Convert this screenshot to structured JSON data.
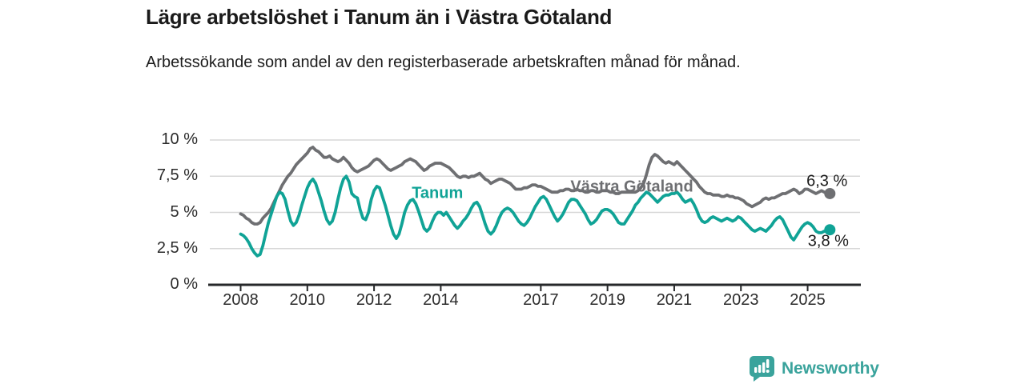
{
  "header": {
    "title": "Lägre arbetslöshet i Tanum än i Västra Götaland",
    "subtitle": "Arbetssökande som andel av den registerbaserade arbetskraften månad för månad."
  },
  "chart_data": {
    "type": "line",
    "x_start": "2008-01",
    "x_step_months": 1,
    "x_end": "2025-09",
    "ylim": [
      0,
      10
    ],
    "grid": "horizontal",
    "grid_color": "#d7d7d7",
    "axis_color": "#26282a",
    "y_ticks": [
      {
        "value": 0,
        "label": "0 %"
      },
      {
        "value": 2.5,
        "label": "2,5 %"
      },
      {
        "value": 5,
        "label": "5 %"
      },
      {
        "value": 7.5,
        "label": "7,5 %"
      },
      {
        "value": 10,
        "label": "10 %"
      }
    ],
    "x_ticks": [
      {
        "value": 2008,
        "label": "2008"
      },
      {
        "value": 2010,
        "label": "2010"
      },
      {
        "value": 2012,
        "label": "2012"
      },
      {
        "value": 2014,
        "label": "2014"
      },
      {
        "value": 2017,
        "label": "2017"
      },
      {
        "value": 2019,
        "label": "2019"
      },
      {
        "value": 2021,
        "label": "2021"
      },
      {
        "value": 2023,
        "label": "2023"
      },
      {
        "value": 2025,
        "label": "2025"
      }
    ],
    "series": [
      {
        "name": "Västra Götaland",
        "color": "#6E6F72",
        "end_label": "6,3 %",
        "end_value": 6.3,
        "values": [
          4.9,
          4.8,
          4.6,
          4.5,
          4.3,
          4.2,
          4.2,
          4.3,
          4.6,
          4.8,
          5.0,
          5.3,
          5.7,
          6.1,
          6.5,
          6.9,
          7.2,
          7.5,
          7.7,
          8.0,
          8.3,
          8.5,
          8.7,
          8.9,
          9.1,
          9.4,
          9.5,
          9.3,
          9.2,
          9.0,
          8.8,
          8.8,
          8.9,
          8.7,
          8.6,
          8.5,
          8.6,
          8.8,
          8.6,
          8.4,
          8.1,
          7.9,
          7.8,
          7.9,
          8.0,
          8.1,
          8.2,
          8.4,
          8.6,
          8.7,
          8.6,
          8.4,
          8.2,
          8.0,
          7.9,
          8.0,
          8.1,
          8.2,
          8.3,
          8.5,
          8.6,
          8.7,
          8.6,
          8.5,
          8.3,
          8.1,
          7.9,
          8.0,
          8.2,
          8.3,
          8.4,
          8.4,
          8.4,
          8.3,
          8.2,
          8.1,
          7.9,
          7.7,
          7.5,
          7.4,
          7.5,
          7.5,
          7.4,
          7.5,
          7.5,
          7.6,
          7.7,
          7.5,
          7.3,
          7.2,
          7.0,
          7.1,
          7.2,
          7.3,
          7.3,
          7.2,
          7.1,
          7.0,
          6.8,
          6.6,
          6.6,
          6.6,
          6.7,
          6.7,
          6.8,
          6.9,
          6.9,
          6.8,
          6.8,
          6.7,
          6.6,
          6.5,
          6.4,
          6.4,
          6.4,
          6.5,
          6.5,
          6.6,
          6.6,
          6.5,
          6.5,
          6.6,
          6.5,
          6.5,
          6.4,
          6.4,
          6.5,
          6.5,
          6.4,
          6.4,
          6.5,
          6.5,
          6.5,
          6.4,
          6.4,
          6.3,
          6.3,
          6.4,
          6.4,
          6.4,
          6.4,
          6.4,
          6.4,
          6.5,
          6.7,
          7.0,
          7.6,
          8.3,
          8.8,
          9.0,
          8.9,
          8.7,
          8.5,
          8.4,
          8.5,
          8.4,
          8.3,
          8.5,
          8.3,
          8.1,
          7.9,
          7.7,
          7.5,
          7.3,
          7.1,
          6.8,
          6.6,
          6.4,
          6.3,
          6.3,
          6.2,
          6.2,
          6.2,
          6.1,
          6.1,
          6.2,
          6.1,
          6.1,
          6.0,
          6.0,
          5.9,
          5.8,
          5.6,
          5.5,
          5.4,
          5.5,
          5.6,
          5.7,
          5.9,
          6.0,
          5.9,
          6.0,
          6.0,
          6.1,
          6.2,
          6.3,
          6.3,
          6.4,
          6.5,
          6.6,
          6.5,
          6.3,
          6.4,
          6.6,
          6.6,
          6.5,
          6.4,
          6.3,
          6.4,
          6.5,
          6.4,
          6.3,
          6.3
        ]
      },
      {
        "name": "Tanum",
        "color": "#10A396",
        "end_label": "3,8 %",
        "end_value": 3.8,
        "values": [
          3.5,
          3.4,
          3.2,
          2.9,
          2.5,
          2.2,
          2.0,
          2.1,
          2.7,
          3.5,
          4.3,
          4.9,
          5.5,
          6.1,
          6.4,
          6.3,
          5.9,
          5.1,
          4.4,
          4.1,
          4.3,
          4.8,
          5.5,
          6.1,
          6.7,
          7.1,
          7.3,
          7.0,
          6.4,
          5.8,
          5.1,
          4.5,
          4.2,
          4.4,
          5.0,
          5.9,
          6.7,
          7.3,
          7.5,
          7.1,
          6.3,
          6.1,
          6.0,
          5.2,
          4.6,
          4.5,
          5.0,
          5.9,
          6.5,
          6.8,
          6.7,
          6.1,
          5.5,
          4.8,
          4.1,
          3.5,
          3.2,
          3.5,
          4.2,
          5.0,
          5.5,
          5.8,
          5.9,
          5.6,
          5.1,
          4.5,
          3.9,
          3.7,
          3.9,
          4.4,
          4.8,
          5.0,
          5.0,
          4.8,
          5.0,
          4.7,
          4.4,
          4.1,
          3.9,
          4.1,
          4.4,
          4.6,
          4.9,
          5.3,
          5.6,
          5.7,
          5.4,
          4.8,
          4.2,
          3.7,
          3.5,
          3.7,
          4.1,
          4.6,
          5.0,
          5.2,
          5.3,
          5.2,
          5.0,
          4.7,
          4.4,
          4.2,
          4.1,
          4.3,
          4.6,
          5.0,
          5.4,
          5.7,
          6.0,
          6.1,
          5.9,
          5.5,
          5.1,
          4.7,
          4.4,
          4.6,
          4.9,
          5.3,
          5.7,
          5.9,
          5.9,
          5.8,
          5.5,
          5.2,
          4.9,
          4.5,
          4.2,
          4.3,
          4.5,
          4.8,
          5.1,
          5.2,
          5.2,
          5.1,
          4.9,
          4.6,
          4.3,
          4.2,
          4.2,
          4.5,
          4.8,
          5.1,
          5.5,
          5.7,
          6.0,
          6.2,
          6.4,
          6.3,
          6.1,
          5.9,
          5.7,
          5.9,
          6.1,
          6.2,
          6.2,
          6.3,
          6.3,
          6.4,
          6.2,
          5.9,
          5.7,
          5.8,
          5.9,
          5.6,
          5.2,
          4.7,
          4.4,
          4.3,
          4.4,
          4.6,
          4.7,
          4.6,
          4.5,
          4.4,
          4.5,
          4.6,
          4.5,
          4.4,
          4.5,
          4.7,
          4.6,
          4.4,
          4.2,
          4.0,
          3.8,
          3.7,
          3.8,
          3.9,
          3.8,
          3.7,
          3.9,
          4.1,
          4.4,
          4.6,
          4.7,
          4.5,
          4.1,
          3.7,
          3.3,
          3.1,
          3.4,
          3.7,
          4.0,
          4.2,
          4.3,
          4.2,
          4.0,
          3.7,
          3.6,
          3.6,
          3.7,
          3.7,
          3.8
        ]
      }
    ],
    "annotations": [
      {
        "text": "Tanum",
        "x_year": 2013.9,
        "y_pct": 6.3,
        "color": "#10A396",
        "bold": true,
        "name": "series-label-tanum"
      },
      {
        "text": "Västra Götaland",
        "x_year": 2019.73,
        "y_pct": 6.75,
        "color": "#6E6F72",
        "bold": true,
        "name": "series-label-vastra-gotaland"
      },
      {
        "text": "6,3 %",
        "x_year": 2025.58,
        "y_pct": 7.15,
        "color": "#1a1a1a",
        "bold": false,
        "name": "end-value-label-vastra-gotaland"
      },
      {
        "text": "3,8 %",
        "x_year": 2025.62,
        "y_pct": 3.0,
        "color": "#1a1a1a",
        "bold": false,
        "name": "end-value-label-tanum"
      }
    ]
  },
  "footer": {
    "brand": "Newsworthy",
    "brand_color": "#3AA39C"
  }
}
